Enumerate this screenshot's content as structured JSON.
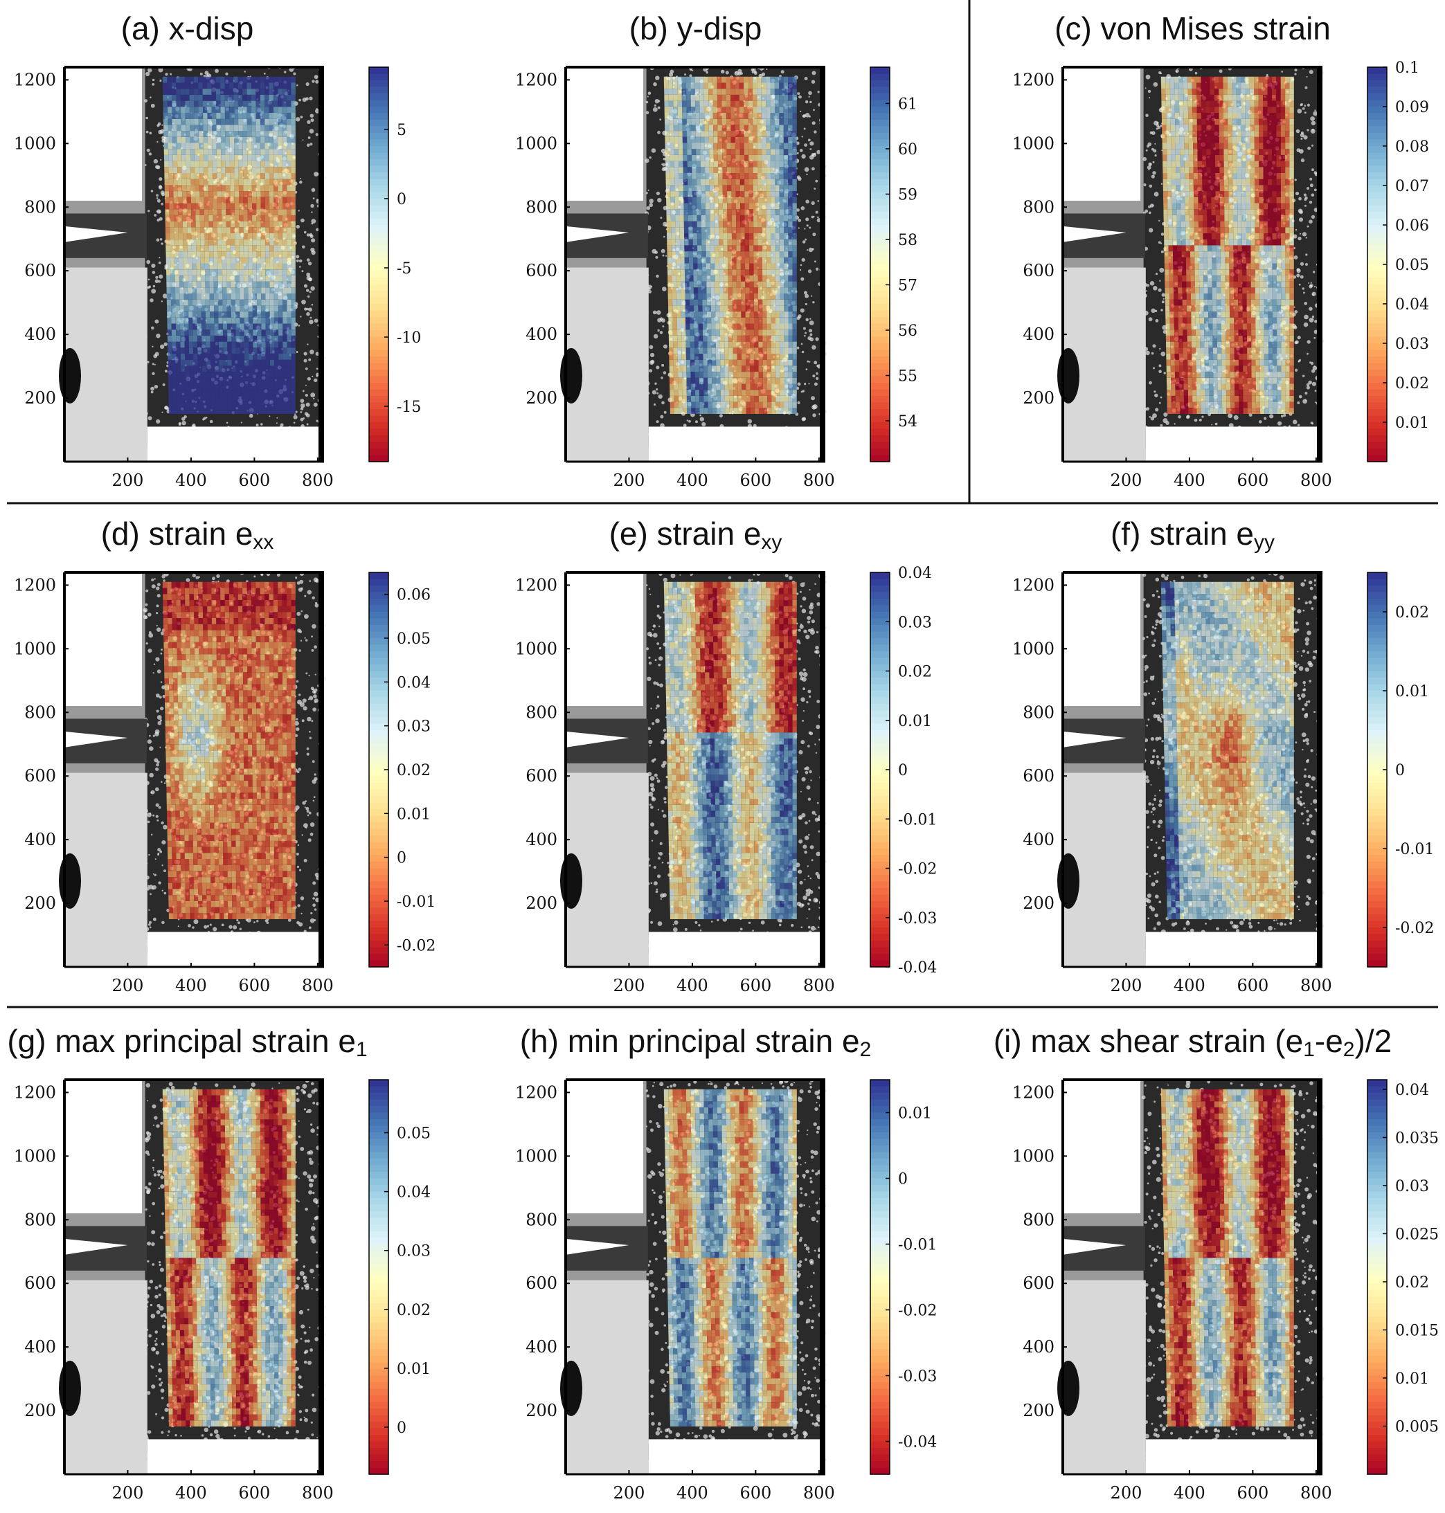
{
  "colors": {
    "colormap": [
      "#a50026",
      "#d73027",
      "#f46d43",
      "#fdae61",
      "#fee090",
      "#ffffbf",
      "#e0f3f8",
      "#abd9e9",
      "#74add1",
      "#4575b4",
      "#313695"
    ],
    "divider": "#111111",
    "specimen_bg": "#2a2a2a",
    "fixture_light": "#d8d8d8"
  },
  "chart_data": [
    {
      "type": "heatmap",
      "id": "a",
      "title": "(a) x-disp",
      "title_sub": "",
      "xlim": [
        0,
        820
      ],
      "ylim": [
        0,
        1240
      ],
      "xticks": [
        200,
        400,
        600,
        800
      ],
      "yticks": [
        200,
        400,
        600,
        800,
        1000,
        1200
      ],
      "colorbar": {
        "min": -19,
        "max": 9.5,
        "ticks": [
          5,
          0,
          -5,
          -10,
          -15
        ],
        "tick_labels": [
          "5",
          "0",
          "-5",
          "-10",
          "-15"
        ]
      },
      "field": "x-disp"
    },
    {
      "type": "heatmap",
      "id": "b",
      "title": "(b) y-disp",
      "title_sub": "",
      "xlim": [
        0,
        820
      ],
      "ylim": [
        0,
        1240
      ],
      "xticks": [
        200,
        400,
        600,
        800
      ],
      "yticks": [
        200,
        400,
        600,
        800,
        1000,
        1200
      ],
      "colorbar": {
        "min": 53.1,
        "max": 61.8,
        "ticks": [
          61,
          60,
          59,
          58,
          57,
          56,
          55,
          54
        ],
        "tick_labels": [
          "61",
          "60",
          "59",
          "58",
          "57",
          "56",
          "55",
          "54"
        ]
      },
      "field": "y-disp"
    },
    {
      "type": "heatmap",
      "id": "c",
      "title": "(c) von Mises strain",
      "title_sub": "",
      "xlim": [
        0,
        820
      ],
      "ylim": [
        0,
        1240
      ],
      "xticks": [
        200,
        400,
        600,
        800
      ],
      "yticks": [
        200,
        400,
        600,
        800,
        1000,
        1200
      ],
      "colorbar": {
        "min": 0,
        "max": 0.1,
        "ticks": [
          0.1,
          0.09,
          0.08,
          0.07,
          0.06,
          0.05,
          0.04,
          0.03,
          0.02,
          0.01
        ],
        "tick_labels": [
          "0.1",
          "0.09",
          "0.08",
          "0.07",
          "0.06",
          "0.05",
          "0.04",
          "0.03",
          "0.02",
          "0.01"
        ]
      },
      "field": "von-mises"
    },
    {
      "type": "heatmap",
      "id": "d",
      "title": "(d) strain e",
      "title_sub": "xx",
      "xlim": [
        0,
        820
      ],
      "ylim": [
        0,
        1240
      ],
      "xticks": [
        200,
        400,
        600,
        800
      ],
      "yticks": [
        200,
        400,
        600,
        800,
        1000,
        1200
      ],
      "colorbar": {
        "min": -0.025,
        "max": 0.065,
        "ticks": [
          0.06,
          0.05,
          0.04,
          0.03,
          0.02,
          0.01,
          0,
          -0.01,
          -0.02
        ],
        "tick_labels": [
          "0.06",
          "0.05",
          "0.04",
          "0.03",
          "0.02",
          "0.01",
          "0",
          "-0.01",
          "-0.02"
        ]
      },
      "field": "exx"
    },
    {
      "type": "heatmap",
      "id": "e",
      "title": "(e) strain e",
      "title_sub": "xy",
      "xlim": [
        0,
        820
      ],
      "ylim": [
        0,
        1240
      ],
      "xticks": [
        200,
        400,
        600,
        800
      ],
      "yticks": [
        200,
        400,
        600,
        800,
        1000,
        1200
      ],
      "colorbar": {
        "min": -0.04,
        "max": 0.04,
        "ticks": [
          0.04,
          0.03,
          0.02,
          0.01,
          0,
          -0.01,
          -0.02,
          -0.03,
          -0.04
        ],
        "tick_labels": [
          "0.04",
          "0.03",
          "0.02",
          "0.01",
          "0",
          "-0.01",
          "-0.02",
          "-0.03",
          "-0.04"
        ]
      },
      "field": "exy"
    },
    {
      "type": "heatmap",
      "id": "f",
      "title": "(f) strain e",
      "title_sub": "yy",
      "xlim": [
        0,
        820
      ],
      "ylim": [
        0,
        1240
      ],
      "xticks": [
        200,
        400,
        600,
        800
      ],
      "yticks": [
        200,
        400,
        600,
        800,
        1000,
        1200
      ],
      "colorbar": {
        "min": -0.025,
        "max": 0.025,
        "ticks": [
          0.02,
          0.01,
          0,
          -0.01,
          -0.02
        ],
        "tick_labels": [
          "0.02",
          "0.01",
          "0",
          "-0.01",
          "-0.02"
        ]
      },
      "field": "eyy"
    },
    {
      "type": "heatmap",
      "id": "g",
      "title": "(g) max principal strain e",
      "title_sub": "1",
      "xlim": [
        0,
        820
      ],
      "ylim": [
        0,
        1240
      ],
      "xticks": [
        200,
        400,
        600,
        800
      ],
      "yticks": [
        200,
        400,
        600,
        800,
        1000,
        1200
      ],
      "colorbar": {
        "min": -0.008,
        "max": 0.059,
        "ticks": [
          0.05,
          0.04,
          0.03,
          0.02,
          0.01,
          0
        ],
        "tick_labels": [
          "0.05",
          "0.04",
          "0.03",
          "0.02",
          "0.01",
          "0"
        ]
      },
      "field": "e1"
    },
    {
      "type": "heatmap",
      "id": "h",
      "title": "(h) min principal strain e",
      "title_sub": "2",
      "xlim": [
        0,
        820
      ],
      "ylim": [
        0,
        1240
      ],
      "xticks": [
        200,
        400,
        600,
        800
      ],
      "yticks": [
        200,
        400,
        600,
        800,
        1000,
        1200
      ],
      "colorbar": {
        "min": -0.045,
        "max": 0.015,
        "ticks": [
          0.01,
          0,
          -0.01,
          -0.02,
          -0.03,
          -0.04
        ],
        "tick_labels": [
          "0.01",
          "0",
          "-0.01",
          "-0.02",
          "-0.03",
          "-0.04"
        ]
      },
      "field": "e2"
    },
    {
      "type": "heatmap",
      "id": "i",
      "title": "(i) max shear strain (e",
      "title_sub": "1",
      "title_mid": "-e",
      "title_sub2": "2",
      "title_end": ")/2",
      "xlim": [
        0,
        820
      ],
      "ylim": [
        0,
        1240
      ],
      "xticks": [
        200,
        400,
        600,
        800
      ],
      "yticks": [
        200,
        400,
        600,
        800,
        1000,
        1200
      ],
      "colorbar": {
        "min": 0,
        "max": 0.041,
        "ticks": [
          0.04,
          0.035,
          0.03,
          0.025,
          0.02,
          0.015,
          0.01,
          0.005
        ],
        "tick_labels": [
          "0.04",
          "0.035",
          "0.03",
          "0.025",
          "0.02",
          "0.015",
          "0.01",
          "0.005"
        ]
      },
      "field": "shear"
    }
  ]
}
